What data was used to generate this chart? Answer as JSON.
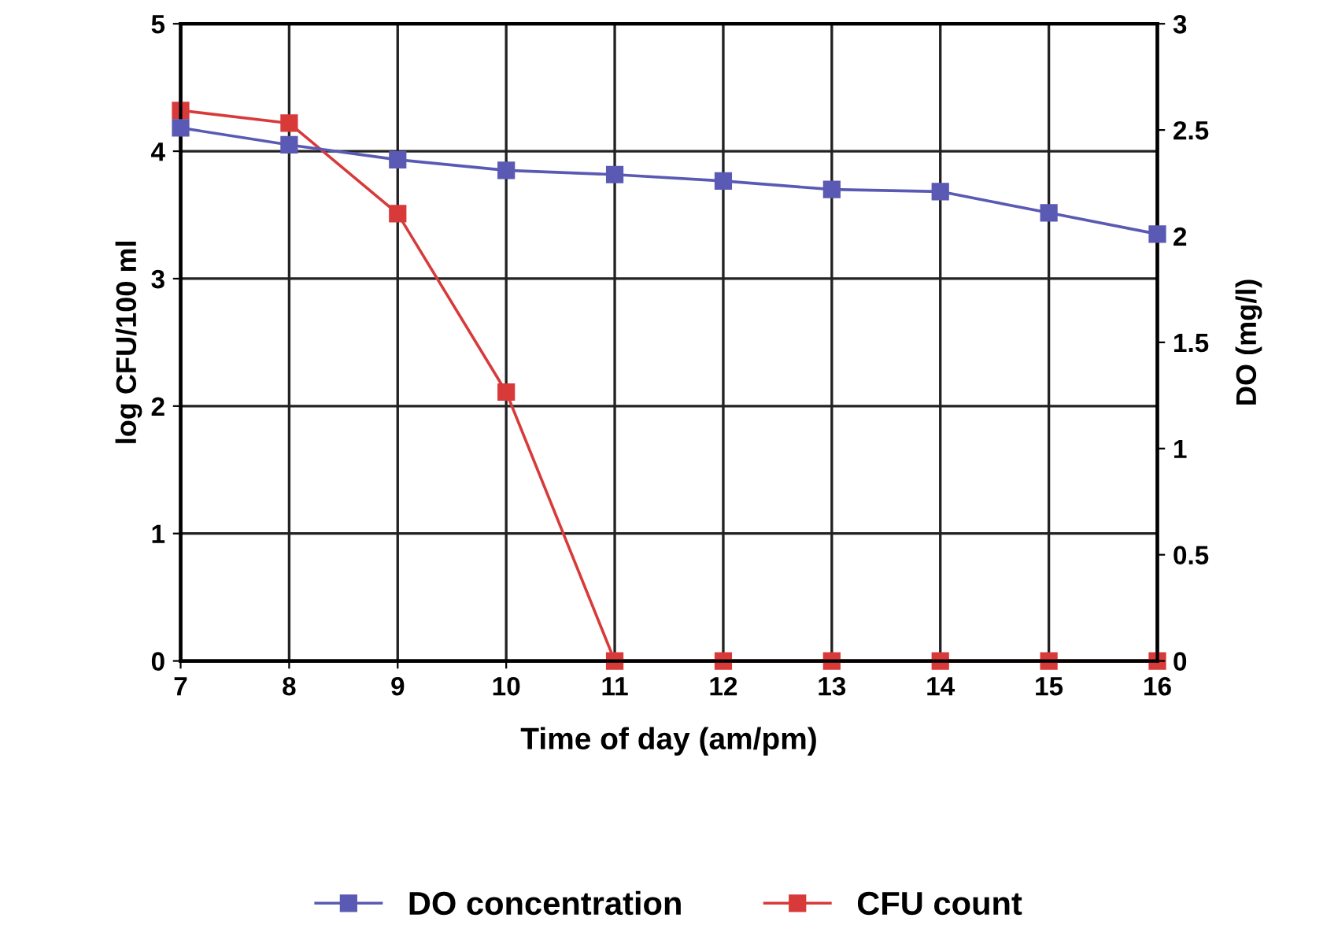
{
  "chart_data": {
    "type": "line",
    "xlabel": "Time of day (am/pm)",
    "ylabel": "log CFU/100 ml",
    "y2label": "DO (mg/l)",
    "categories": [
      "7",
      "8",
      "9",
      "10",
      "11",
      "12",
      "13",
      "14",
      "15",
      "16"
    ],
    "series": [
      {
        "name": "DO concentration",
        "color": "#5a5ab4",
        "axis": "y2",
        "values": [
          2.51,
          2.43,
          2.36,
          2.31,
          2.29,
          2.26,
          2.22,
          2.21,
          2.11,
          2.01
        ]
      },
      {
        "name": "CFU count",
        "color": "#d83a3a",
        "values": [
          4.32,
          4.22,
          3.51,
          2.11,
          0,
          0,
          0,
          0,
          0,
          0
        ]
      }
    ],
    "ylim": [
      0,
      5
    ],
    "yticks": [
      0,
      1,
      2,
      3,
      4,
      5
    ],
    "y2lim": [
      0,
      3
    ],
    "y2ticks": [
      0,
      0.5,
      1,
      1.5,
      2,
      2.5,
      3
    ],
    "grid": true,
    "legend": "bottom",
    "marker": "square",
    "line_style": "solid"
  }
}
